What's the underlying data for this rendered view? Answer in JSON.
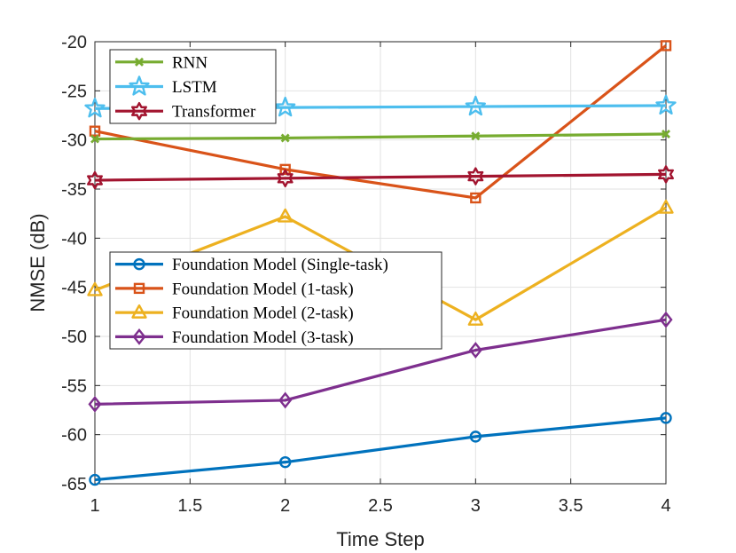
{
  "chart_data": {
    "type": "line",
    "title": "",
    "xlabel": "Time Step",
    "ylabel": "NMSE (dB)",
    "x": [
      1,
      2,
      3,
      4
    ],
    "xlim": [
      1,
      4
    ],
    "ylim": [
      -65,
      -20
    ],
    "xticks": [
      1,
      1.5,
      2,
      2.5,
      3,
      3.5,
      4
    ],
    "xtick_labels": [
      "1",
      "1.5",
      "2",
      "2.5",
      "3",
      "3.5",
      "4"
    ],
    "yticks": [
      -65,
      -60,
      -55,
      -50,
      -45,
      -40,
      -35,
      -30,
      -25,
      -20
    ],
    "ytick_labels": [
      "-65",
      "-60",
      "-55",
      "-50",
      "-45",
      "-40",
      "-35",
      "-30",
      "-25",
      "-20"
    ],
    "grid": true,
    "series": [
      {
        "name": "Foundation Model (Single-task)",
        "values": [
          -64.6,
          -62.8,
          -60.2,
          -58.3
        ],
        "color": "#0072BD",
        "marker": "circle",
        "legend": "bottom"
      },
      {
        "name": "Foundation Model (1-task)",
        "values": [
          -29.1,
          -33.0,
          -35.9,
          -20.4
        ],
        "color": "#D95319",
        "marker": "square",
        "legend": "bottom"
      },
      {
        "name": "Foundation Model (2-task)",
        "values": [
          -45.3,
          -37.8,
          -48.3,
          -36.9
        ],
        "color": "#EDB120",
        "marker": "triangle",
        "legend": "bottom"
      },
      {
        "name": "Foundation Model (3-task)",
        "values": [
          -56.9,
          -56.5,
          -51.4,
          -48.3
        ],
        "color": "#7E2F8E",
        "marker": "diamond",
        "legend": "bottom"
      },
      {
        "name": "RNN",
        "values": [
          -29.9,
          -29.8,
          -29.6,
          -29.4
        ],
        "color": "#77AC30",
        "marker": "x",
        "legend": "top"
      },
      {
        "name": "LSTM",
        "values": [
          -26.8,
          -26.7,
          -26.6,
          -26.5
        ],
        "color": "#4DBEEE",
        "marker": "star",
        "legend": "top"
      },
      {
        "name": "Transformer",
        "values": [
          -34.1,
          -33.9,
          -33.7,
          -33.5
        ],
        "color": "#A2142F",
        "marker": "hexagram",
        "legend": "top"
      }
    ],
    "legends": [
      {
        "placement": "top-left",
        "entries": [
          "RNN",
          "LSTM",
          "Transformer"
        ]
      },
      {
        "placement": "middle-left",
        "entries": [
          "Foundation Model (Single-task)",
          "Foundation Model (1-task)",
          "Foundation Model (2-task)",
          "Foundation Model (3-task)"
        ]
      }
    ]
  }
}
